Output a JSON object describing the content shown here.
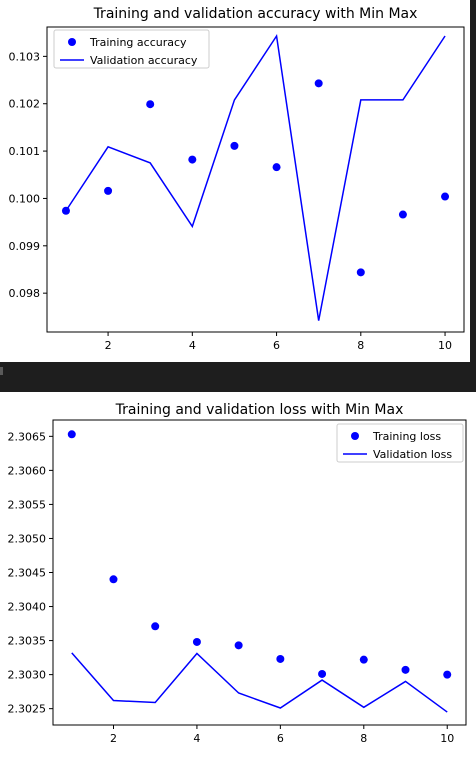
{
  "chart_data": [
    {
      "type": "line",
      "title": "Training and validation accuracy with Min Max",
      "xlabel": "",
      "ylabel": "",
      "x": [
        1,
        2,
        3,
        4,
        5,
        6,
        7,
        8,
        9,
        10
      ],
      "xlim": [
        0.55,
        10.45
      ],
      "ylim": [
        0.09718,
        0.10362
      ],
      "xticks": [
        2,
        4,
        6,
        8,
        10
      ],
      "xtick_labels": [
        "2",
        "4",
        "6",
        "8",
        "10"
      ],
      "yticks": [
        0.098,
        0.099,
        0.1,
        0.101,
        0.102,
        0.103
      ],
      "ytick_labels": [
        "0.098",
        "0.099",
        "0.100",
        "0.101",
        "0.102",
        "0.103"
      ],
      "grid": false,
      "legend_position": "upper-left",
      "series": [
        {
          "name": "Training accuracy",
          "style": "points",
          "color": "#0000ff",
          "values": [
            0.09974,
            0.10016,
            0.10199,
            0.10082,
            0.10111,
            0.10066,
            0.10243,
            0.09844,
            0.09966,
            0.10004
          ]
        },
        {
          "name": "Validation accuracy",
          "style": "line",
          "color": "#0000ff",
          "values": [
            0.09974,
            0.10109,
            0.10075,
            0.09941,
            0.10208,
            0.10343,
            0.09742,
            0.10208,
            0.10208,
            0.10343
          ]
        }
      ]
    },
    {
      "type": "line",
      "title": "Training and validation loss with Min Max",
      "xlabel": "",
      "ylabel": "",
      "x": [
        1,
        2,
        3,
        4,
        5,
        6,
        7,
        8,
        9,
        10
      ],
      "xlim": [
        0.55,
        10.45
      ],
      "ylim": [
        2.30226,
        2.30674
      ],
      "xticks": [
        2,
        4,
        6,
        8,
        10
      ],
      "xtick_labels": [
        "2",
        "4",
        "6",
        "8",
        "10"
      ],
      "yticks": [
        2.3025,
        2.303,
        2.3035,
        2.304,
        2.3045,
        2.305,
        2.3055,
        2.306,
        2.3065
      ],
      "ytick_labels": [
        "2.3025",
        "2.3030",
        "2.3035",
        "2.3040",
        "2.3045",
        "2.3050",
        "2.3055",
        "2.3060",
        "2.3065"
      ],
      "grid": false,
      "legend_position": "upper-right",
      "series": [
        {
          "name": "Training loss",
          "style": "points",
          "color": "#0000ff",
          "values": [
            2.30653,
            2.3044,
            2.30371,
            2.30348,
            2.30343,
            2.30323,
            2.30301,
            2.30322,
            2.30307,
            2.303
          ]
        },
        {
          "name": "Validation loss",
          "style": "line",
          "color": "#0000ff",
          "values": [
            2.30332,
            2.30262,
            2.30259,
            2.30331,
            2.30273,
            2.30251,
            2.30292,
            2.30252,
            2.3029,
            2.30245
          ]
        }
      ]
    }
  ]
}
